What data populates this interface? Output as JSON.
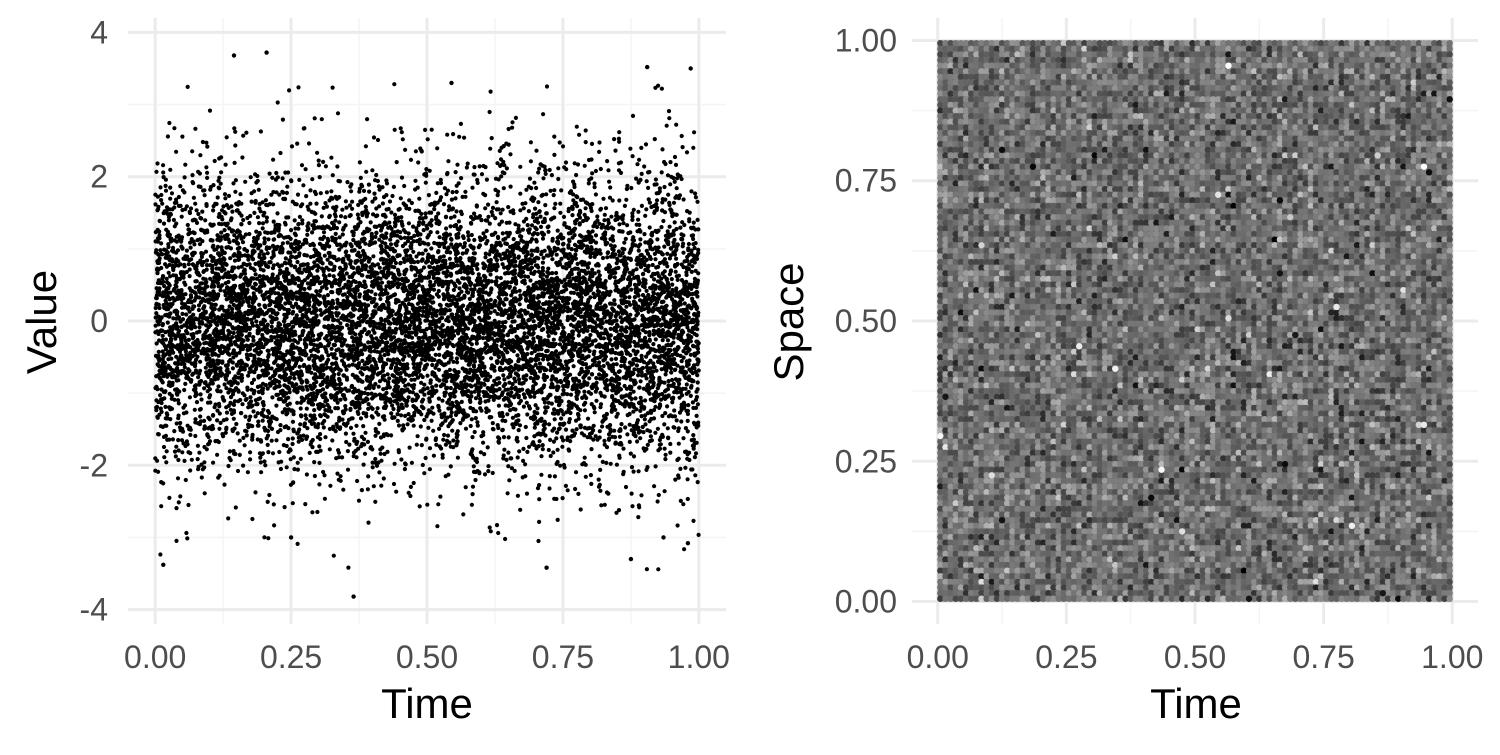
{
  "chart_data": [
    {
      "type": "scatter",
      "title": "",
      "xlabel": "Time",
      "ylabel": "Value",
      "xlim": [
        -0.05,
        1.05
      ],
      "ylim": [
        -4.2,
        4.2
      ],
      "x_ticks": [
        0,
        0.25,
        0.5,
        0.75,
        1
      ],
      "x_tick_labels": [
        "0.00",
        "0.25",
        "0.50",
        "0.75",
        "1.00"
      ],
      "y_ticks": [
        -4,
        -2,
        0,
        2,
        4
      ],
      "y_tick_labels": [
        "-4",
        "-2",
        "0",
        "2",
        "4"
      ],
      "grid": true,
      "point_color": "#000000",
      "n_points_approx": 10000,
      "distribution": "Value approximately standard normal (mean 0, sd 1) across Time 0 to 1",
      "series": [
        {
          "values_sample": [
            {
              "x": 0.015,
              "y": -3.38
            },
            {
              "x": 0.145,
              "y": 3.68
            },
            {
              "x": 0.205,
              "y": 3.72
            },
            {
              "x": 0.25,
              "y": -3.0
            },
            {
              "x": 0.365,
              "y": -3.82
            },
            {
              "x": 0.545,
              "y": 3.3
            },
            {
              "x": 0.72,
              "y": -3.42
            },
            {
              "x": 0.905,
              "y": 3.52
            },
            {
              "x": 0.985,
              "y": 3.5
            },
            {
              "x": 0.98,
              "y": -3.08
            },
            {
              "x": 0.935,
              "y": -3.0
            },
            {
              "x": 0.875,
              "y": -3.3
            }
          ]
        }
      ]
    },
    {
      "type": "heatmap",
      "title": "",
      "xlabel": "Time",
      "ylabel": "Space",
      "xlim": [
        -0.05,
        1.05
      ],
      "ylim": [
        -0.04,
        1.04
      ],
      "x_ticks": [
        0,
        0.25,
        0.5,
        0.75,
        1
      ],
      "x_tick_labels": [
        "0.00",
        "0.25",
        "0.50",
        "0.75",
        "1.00"
      ],
      "y_ticks": [
        0,
        0.25,
        0.5,
        0.75,
        1
      ],
      "y_tick_labels": [
        "0.00",
        "0.25",
        "0.50",
        "0.75",
        "1.00"
      ],
      "grid": true,
      "x_range": [
        0,
        1
      ],
      "y_range": [
        0,
        1
      ],
      "grid_cells_approx": [
        100,
        100
      ],
      "color_scale": "grayscale",
      "color_low": "#000000",
      "color_high": "#ffffff",
      "mean_color": "#6e6e6e"
    }
  ],
  "colors": {
    "panel_grid_major": "#ebebeb",
    "panel_grid_minor": "#f5f5f5",
    "tick_label": "#4d4d4d",
    "axis_title": "#000000"
  }
}
